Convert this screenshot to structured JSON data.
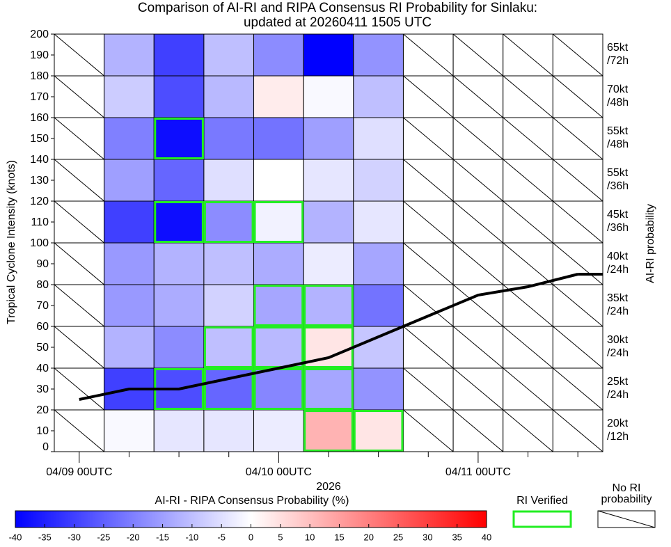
{
  "chart_data": {
    "type": "heatmap",
    "title": [
      "Comparison of AI-RI and RIPA Consensus RI Probability for Sinlaku:",
      "updated at 20260411 1505 UTC"
    ],
    "ylabel": "Tropical Cyclone Intensity (knots)",
    "y2label": "AI-RI probability",
    "xlabel": "2026",
    "categories": [
      "04/09 00UTC",
      null,
      null,
      null,
      "04/10 00UTC",
      null,
      null,
      null,
      "04/11 00UTC",
      null,
      null
    ],
    "ylim": [
      0,
      200
    ],
    "yticks": [
      0,
      10,
      20,
      30,
      40,
      50,
      60,
      70,
      80,
      90,
      100,
      110,
      120,
      130,
      140,
      150,
      160,
      170,
      180,
      190,
      200
    ],
    "rows": [
      {
        "range": [
          180,
          200
        ],
        "label": [
          "65kt",
          "/72h"
        ],
        "values": [
          null,
          -12,
          -30,
          -10,
          -18,
          -40,
          -17,
          null,
          null,
          null,
          null
        ],
        "verified": [
          false,
          false,
          false,
          false,
          false,
          false,
          false,
          false,
          false,
          false,
          false
        ]
      },
      {
        "range": [
          160,
          180
        ],
        "label": [
          "70kt",
          "/48h"
        ],
        "values": [
          null,
          -8,
          -28,
          -11,
          3,
          -1,
          -10,
          null,
          null,
          null,
          null
        ],
        "verified": [
          false,
          false,
          false,
          false,
          false,
          false,
          false,
          false,
          false,
          false,
          false
        ]
      },
      {
        "range": [
          140,
          160
        ],
        "label": [
          "55kt",
          "/48h"
        ],
        "values": [
          null,
          -20,
          -38,
          -21,
          -22,
          -15,
          -5,
          null,
          null,
          null,
          null
        ],
        "verified": [
          false,
          false,
          true,
          false,
          false,
          false,
          false,
          false,
          false,
          false,
          false
        ]
      },
      {
        "range": [
          120,
          140
        ],
        "label": [
          "55kt",
          "/36h"
        ],
        "values": [
          null,
          -15,
          -24,
          -5,
          0,
          -4,
          -7,
          null,
          null,
          null,
          null
        ],
        "verified": [
          false,
          false,
          false,
          false,
          false,
          false,
          false,
          false,
          false,
          false,
          false
        ]
      },
      {
        "range": [
          100,
          120
        ],
        "label": [
          "45kt",
          "/36h"
        ],
        "values": [
          null,
          -30,
          -38,
          -18,
          -2,
          -12,
          -4,
          null,
          null,
          null,
          null
        ],
        "verified": [
          false,
          false,
          true,
          true,
          true,
          false,
          false,
          false,
          false,
          false,
          false
        ]
      },
      {
        "range": [
          80,
          100
        ],
        "label": [
          "40kt",
          "/24h"
        ],
        "values": [
          null,
          -16,
          -12,
          -10,
          -13,
          -3,
          -14,
          null,
          null,
          null,
          null
        ],
        "verified": [
          false,
          false,
          false,
          false,
          false,
          false,
          false,
          false,
          false,
          false,
          false
        ]
      },
      {
        "range": [
          60,
          80
        ],
        "label": [
          "35kt",
          "/24h"
        ],
        "values": [
          null,
          -16,
          -13,
          -7,
          -14,
          -12,
          -22,
          null,
          null,
          null,
          null
        ],
        "verified": [
          false,
          false,
          false,
          false,
          true,
          true,
          false,
          false,
          false,
          false,
          false
        ]
      },
      {
        "range": [
          40,
          60
        ],
        "label": [
          "30kt",
          "/24h"
        ],
        "values": [
          null,
          -12,
          -18,
          -10,
          -11,
          4,
          -9,
          null,
          null,
          null,
          null
        ],
        "verified": [
          false,
          false,
          false,
          true,
          true,
          true,
          false,
          false,
          false,
          false,
          false
        ]
      },
      {
        "range": [
          20,
          40
        ],
        "label": [
          "25kt",
          "/24h"
        ],
        "values": [
          null,
          -30,
          -28,
          -24,
          -19,
          -14,
          -17,
          null,
          null,
          null,
          null
        ],
        "verified": [
          false,
          false,
          true,
          true,
          true,
          true,
          false,
          false,
          false,
          false,
          false
        ]
      },
      {
        "range": [
          0,
          20
        ],
        "label": [
          "20kt",
          "/12h"
        ],
        "values": [
          null,
          -1,
          -4,
          -4,
          -3,
          12,
          4,
          null,
          null,
          null,
          null
        ],
        "verified": [
          false,
          false,
          false,
          false,
          false,
          true,
          true,
          false,
          false,
          false,
          false
        ]
      }
    ],
    "line": {
      "color": "#000000",
      "values": [
        25,
        30,
        30,
        35,
        40,
        45,
        55,
        65,
        75,
        79,
        85
      ]
    },
    "colorbar": {
      "label": "AI-RI - RIPA Consensus Probability (%)",
      "clim": [
        -40,
        40
      ],
      "colors": [
        "#0000ff",
        "#ffffff",
        "#ff0000"
      ],
      "ticks": [
        -40,
        -35,
        -30,
        -25,
        -20,
        -15,
        -10,
        -5,
        0,
        5,
        10,
        15,
        20,
        25,
        30,
        35,
        40
      ]
    },
    "legend": {
      "verified": "RI Verified",
      "verified_color": "#22ee22",
      "none": [
        "No RI",
        "probability"
      ]
    }
  }
}
